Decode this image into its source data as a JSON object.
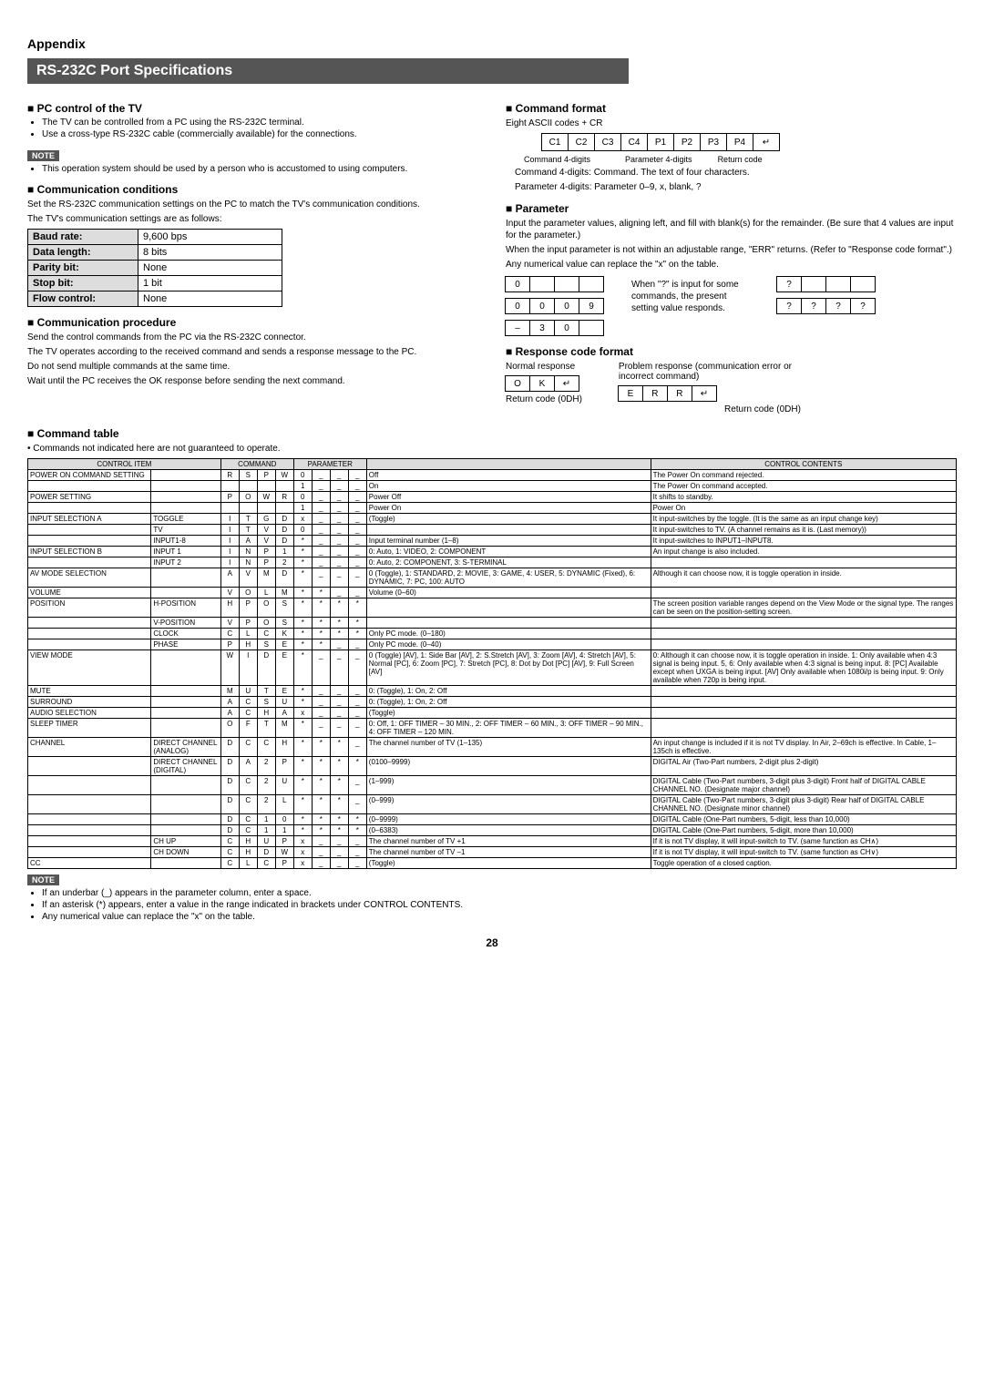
{
  "appendix": "Appendix",
  "title": "RS-232C Port Specifications",
  "left": {
    "pc_control": {
      "head": "PC control of the TV",
      "bullets": [
        "The TV can be controlled from a PC using the RS-232C terminal.",
        "Use a cross-type RS-232C cable (commercially available) for the connections."
      ],
      "note": "NOTE",
      "note_bullet": "This operation system should be used by a person who is accustomed to using computers."
    },
    "comm_cond": {
      "head": "Communication conditions",
      "p1": "Set the RS-232C communication settings on the PC to match the TV's communication conditions.",
      "p2": "The TV's communication settings are as follows:",
      "rows": [
        [
          "Baud rate:",
          "9,600 bps"
        ],
        [
          "Data length:",
          "8 bits"
        ],
        [
          "Parity bit:",
          "None"
        ],
        [
          "Stop bit:",
          "1 bit"
        ],
        [
          "Flow control:",
          "None"
        ]
      ]
    },
    "comm_proc": {
      "head": "Communication procedure",
      "p1": "Send the control commands from the PC via the RS-232C connector.",
      "p2": "The TV operates according to the received command and sends a response message to the PC.",
      "p3": "Do not send multiple commands at the same time.",
      "p4": "Wait until the PC receives the OK response before sending the next command."
    }
  },
  "right": {
    "cmd_format": {
      "head": "Command format",
      "sub": "Eight ASCII codes + CR",
      "cells": [
        "C1",
        "C2",
        "C3",
        "C4",
        "P1",
        "P2",
        "P3",
        "P4"
      ],
      "lbl_cmd": "Command 4-digits",
      "lbl_par": "Parameter 4-digits",
      "lbl_ret": "Return code",
      "desc1": "Command 4-digits: Command. The text of four characters.",
      "desc2": "Parameter 4-digits: Parameter 0–9, x, blank, ?"
    },
    "parameter": {
      "head": "Parameter",
      "p1": "Input the parameter values, aligning left, and fill with blank(s) for the remainder. (Be sure that 4 values are input for the parameter.)",
      "p2": "When the input parameter is not within an adjustable range, \"ERR\" returns. (Refer to \"Response code format\".)",
      "p3": "Any numerical value can replace the \"x\" on the table.",
      "ex1": [
        "0",
        "",
        "",
        ""
      ],
      "ex2": [
        "0",
        "0",
        "0",
        "9"
      ],
      "ex3": [
        "–",
        "3",
        "0",
        ""
      ],
      "note": "When \"?\" is input for some commands, the present setting value responds.",
      "ex4": [
        "?",
        "",
        "",
        ""
      ],
      "ex5": [
        "?",
        "?",
        "?",
        "?"
      ]
    },
    "resp": {
      "head": "Response code format",
      "normal": "Normal response",
      "problem": "Problem response (communication error or incorrect command)",
      "ok": [
        "O",
        "K"
      ],
      "err": [
        "E",
        "R",
        "R"
      ],
      "ret_lbl": "Return code (0DH)"
    }
  },
  "cmd_table": {
    "head": "Command table",
    "intro": "Commands not indicated here are not guaranteed to operate.",
    "headers": [
      "CONTROL ITEM",
      "",
      "COMMAND",
      "PARAMETER",
      "CONTROL CONTENTS"
    ],
    "rows": [
      {
        "item": "POWER ON COMMAND SETTING",
        "sub": "",
        "cmd": [
          "R",
          "S",
          "P",
          "W"
        ],
        "par": [
          "0",
          "_",
          "_",
          "_"
        ],
        "param": "Off",
        "contents": "The Power On command rejected."
      },
      {
        "item": "",
        "sub": "",
        "cmd": [
          "",
          "",
          "",
          ""
        ],
        "par": [
          "1",
          "_",
          "_",
          "_"
        ],
        "param": "On",
        "contents": "The Power On command accepted."
      },
      {
        "item": "POWER SETTING",
        "sub": "",
        "cmd": [
          "P",
          "O",
          "W",
          "R"
        ],
        "par": [
          "0",
          "_",
          "_",
          "_"
        ],
        "param": "Power Off",
        "contents": "It shifts to standby."
      },
      {
        "item": "",
        "sub": "",
        "cmd": [
          "",
          "",
          "",
          ""
        ],
        "par": [
          "1",
          "_",
          "_",
          "_"
        ],
        "param": "Power On",
        "contents": "Power On"
      },
      {
        "item": "INPUT SELECTION A",
        "sub": "TOGGLE",
        "cmd": [
          "I",
          "T",
          "G",
          "D"
        ],
        "par": [
          "x",
          "_",
          "_",
          "_"
        ],
        "param": "(Toggle)",
        "contents": "It input-switches by the toggle. (It is the same as an input change key)"
      },
      {
        "item": "",
        "sub": "TV",
        "cmd": [
          "I",
          "T",
          "V",
          "D"
        ],
        "par": [
          "0",
          "_",
          "_",
          "_"
        ],
        "param": "",
        "contents": "It input-switches to TV. (A channel remains as it is. (Last memory))"
      },
      {
        "item": "",
        "sub": "INPUT1-8",
        "cmd": [
          "I",
          "A",
          "V",
          "D"
        ],
        "par": [
          "*",
          "_",
          "_",
          "_"
        ],
        "param": "Input terminal number (1–8)",
        "contents": "It input-switches to INPUT1–INPUT8."
      },
      {
        "item": "INPUT SELECTION B",
        "sub": "INPUT 1",
        "cmd": [
          "I",
          "N",
          "P",
          "1"
        ],
        "par": [
          "*",
          "_",
          "_",
          "_"
        ],
        "param": "0: Auto, 1: VIDEO, 2: COMPONENT",
        "contents": "An input change is also included."
      },
      {
        "item": "",
        "sub": "INPUT 2",
        "cmd": [
          "I",
          "N",
          "P",
          "2"
        ],
        "par": [
          "*",
          "_",
          "_",
          "_"
        ],
        "param": "0: Auto, 2: COMPONENT, 3: S-TERMINAL",
        "contents": ""
      },
      {
        "item": "AV MODE SELECTION",
        "sub": "",
        "cmd": [
          "A",
          "V",
          "M",
          "D"
        ],
        "par": [
          "*",
          "_",
          "_",
          "_"
        ],
        "param": "0 (Toggle), 1: STANDARD, 2: MOVIE, 3: GAME, 4: USER, 5: DYNAMIC (Fixed), 6: DYNAMIC, 7: PC, 100: AUTO",
        "contents": "Although it can choose now, it is toggle operation in inside."
      },
      {
        "item": "VOLUME",
        "sub": "",
        "cmd": [
          "V",
          "O",
          "L",
          "M"
        ],
        "par": [
          "*",
          "*",
          "_",
          "_"
        ],
        "param": "Volume (0–60)",
        "contents": ""
      },
      {
        "item": "POSITION",
        "sub": "H-POSITION",
        "cmd": [
          "H",
          "P",
          "O",
          "S"
        ],
        "par": [
          "*",
          "*",
          "*",
          "*"
        ],
        "param": "",
        "contents": "The screen position variable ranges depend on the View Mode or the signal type. The ranges can be seen on the position-setting screen."
      },
      {
        "item": "",
        "sub": "V-POSITION",
        "cmd": [
          "V",
          "P",
          "O",
          "S"
        ],
        "par": [
          "*",
          "*",
          "*",
          "*"
        ],
        "param": "",
        "contents": ""
      },
      {
        "item": "",
        "sub": "CLOCK",
        "cmd": [
          "C",
          "L",
          "C",
          "K"
        ],
        "par": [
          "*",
          "*",
          "*",
          "*"
        ],
        "param": "Only PC mode. (0–180)",
        "contents": ""
      },
      {
        "item": "",
        "sub": "PHASE",
        "cmd": [
          "P",
          "H",
          "S",
          "E"
        ],
        "par": [
          "*",
          "*",
          "_",
          "_"
        ],
        "param": "Only PC mode. (0–40)",
        "contents": ""
      },
      {
        "item": "VIEW MODE",
        "sub": "",
        "cmd": [
          "W",
          "I",
          "D",
          "E"
        ],
        "par": [
          "*",
          "_",
          "_",
          "_"
        ],
        "param": "0 (Toggle) [AV], 1: Side Bar [AV], 2: S.Stretch [AV], 3: Zoom [AV], 4: Stretch [AV], 5: Normal [PC], 6: Zoom [PC], 7: Stretch [PC], 8: Dot by Dot [PC] [AV], 9: Full Screen [AV]",
        "contents": "0: Although it can choose now, it is toggle operation in inside. 1: Only available when 4:3 signal is being input. 5, 6: Only available when 4:3 signal is being input. 8: [PC] Available except when UXGA is being input. [AV] Only available when 1080i/p is being input. 9: Only available when 720p is being input."
      },
      {
        "item": "MUTE",
        "sub": "",
        "cmd": [
          "M",
          "U",
          "T",
          "E"
        ],
        "par": [
          "*",
          "_",
          "_",
          "_"
        ],
        "param": "0: (Toggle), 1: On, 2: Off",
        "contents": ""
      },
      {
        "item": "SURROUND",
        "sub": "",
        "cmd": [
          "A",
          "C",
          "S",
          "U"
        ],
        "par": [
          "*",
          "_",
          "_",
          "_"
        ],
        "param": "0: (Toggle), 1: On, 2: Off",
        "contents": ""
      },
      {
        "item": "AUDIO SELECTION",
        "sub": "",
        "cmd": [
          "A",
          "C",
          "H",
          "A"
        ],
        "par": [
          "x",
          "_",
          "_",
          "_"
        ],
        "param": "(Toggle)",
        "contents": ""
      },
      {
        "item": "SLEEP TIMER",
        "sub": "",
        "cmd": [
          "O",
          "F",
          "T",
          "M"
        ],
        "par": [
          "*",
          "_",
          "_",
          "_"
        ],
        "param": "0: Off, 1: OFF TIMER – 30 MIN., 2: OFF TIMER – 60 MIN., 3: OFF TIMER – 90 MIN., 4: OFF TIMER – 120 MIN.",
        "contents": ""
      },
      {
        "item": "CHANNEL",
        "sub": "DIRECT CHANNEL (ANALOG)",
        "cmd": [
          "D",
          "C",
          "C",
          "H"
        ],
        "par": [
          "*",
          "*",
          "*",
          "_"
        ],
        "param": "The channel number of TV (1–135)",
        "contents": "An input change is included if it is not TV display. In Air, 2–69ch is effective. In Cable, 1–135ch is effective."
      },
      {
        "item": "",
        "sub": "DIRECT CHANNEL (DIGITAL)",
        "cmd": [
          "D",
          "A",
          "2",
          "P"
        ],
        "par": [
          "*",
          "*",
          "*",
          "*"
        ],
        "param": "(0100–9999)",
        "contents": "DIGITAL Air (Two-Part numbers, 2-digit plus 2-digit)"
      },
      {
        "item": "",
        "sub": "",
        "cmd": [
          "D",
          "C",
          "2",
          "U"
        ],
        "par": [
          "*",
          "*",
          "*",
          "_"
        ],
        "param": "(1–999)",
        "contents": "DIGITAL Cable (Two-Part numbers, 3-digit plus 3-digit) Front half of DIGITAL CABLE CHANNEL NO. (Designate major channel)"
      },
      {
        "item": "",
        "sub": "",
        "cmd": [
          "D",
          "C",
          "2",
          "L"
        ],
        "par": [
          "*",
          "*",
          "*",
          "_"
        ],
        "param": "(0–999)",
        "contents": "DIGITAL Cable (Two-Part numbers, 3-digit plus 3-digit) Rear half of DIGITAL CABLE CHANNEL NO. (Designate minor channel)"
      },
      {
        "item": "",
        "sub": "",
        "cmd": [
          "D",
          "C",
          "1",
          "0"
        ],
        "par": [
          "*",
          "*",
          "*",
          "*"
        ],
        "param": "(0–9999)",
        "contents": "DIGITAL Cable (One-Part numbers, 5-digit, less than 10,000)"
      },
      {
        "item": "",
        "sub": "",
        "cmd": [
          "D",
          "C",
          "1",
          "1"
        ],
        "par": [
          "*",
          "*",
          "*",
          "*"
        ],
        "param": "(0–6383)",
        "contents": "DIGITAL Cable (One-Part numbers, 5-digit, more than 10,000)"
      },
      {
        "item": "",
        "sub": "CH UP",
        "cmd": [
          "C",
          "H",
          "U",
          "P"
        ],
        "par": [
          "x",
          "_",
          "_",
          "_"
        ],
        "param": "The channel number of TV +1",
        "contents": "If it is not TV display, it will input-switch to TV. (same function as CH∧)"
      },
      {
        "item": "",
        "sub": "CH DOWN",
        "cmd": [
          "C",
          "H",
          "D",
          "W"
        ],
        "par": [
          "x",
          "_",
          "_",
          "_"
        ],
        "param": "The channel number of TV –1",
        "contents": "If it is not TV display, it will input-switch to TV. (same function as CH∨)"
      },
      {
        "item": "CC",
        "sub": "",
        "cmd": [
          "C",
          "L",
          "C",
          "P"
        ],
        "par": [
          "x",
          "_",
          "_",
          "_"
        ],
        "param": "(Toggle)",
        "contents": "Toggle operation of a closed caption."
      }
    ]
  },
  "footer": {
    "note": "NOTE",
    "bullets": [
      "If an underbar (_) appears in the parameter column, enter a space.",
      "If an asterisk (*) appears, enter a value in the range indicated in brackets under CONTROL CONTENTS.",
      "Any numerical value can replace the \"x\" on the table."
    ]
  },
  "page": "28"
}
